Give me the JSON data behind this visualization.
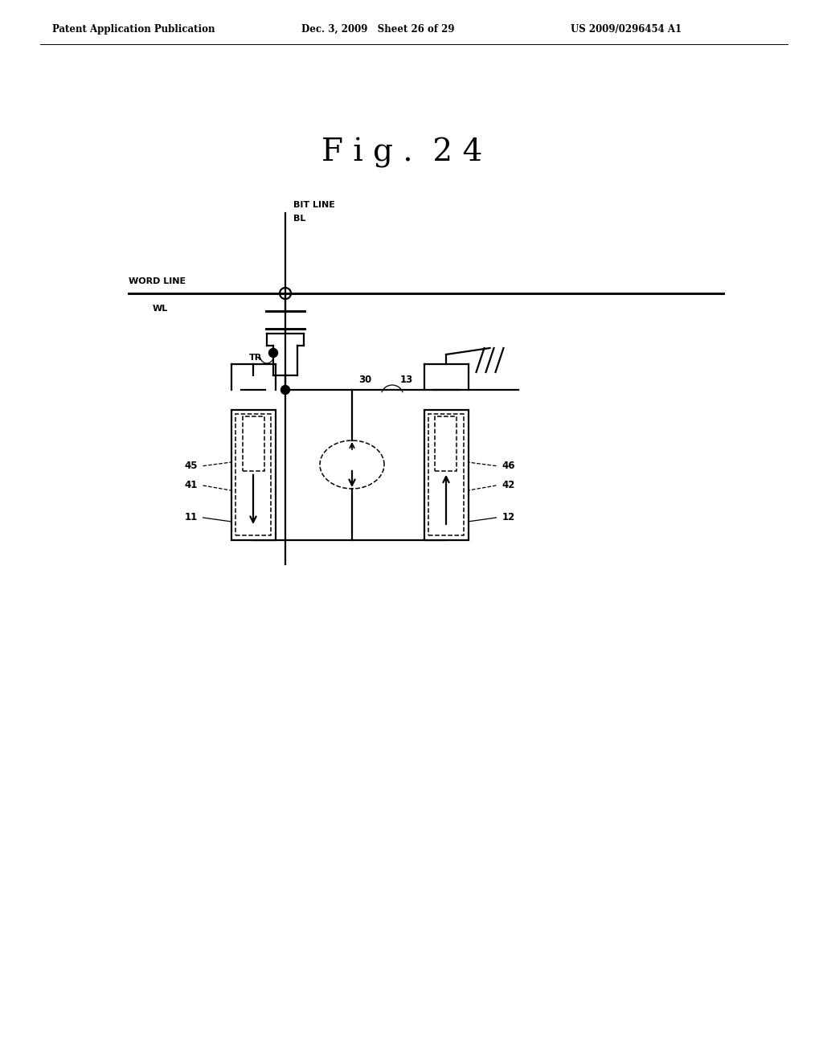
{
  "title": "F i g .  2 4",
  "header_left": "Patent Application Publication",
  "header_center": "Dec. 3, 2009   Sheet 26 of 29",
  "header_right": "US 2009/0296454 A1",
  "bg_color": "#ffffff",
  "line_color": "#000000",
  "fig_width": 10.24,
  "fig_height": 13.2
}
